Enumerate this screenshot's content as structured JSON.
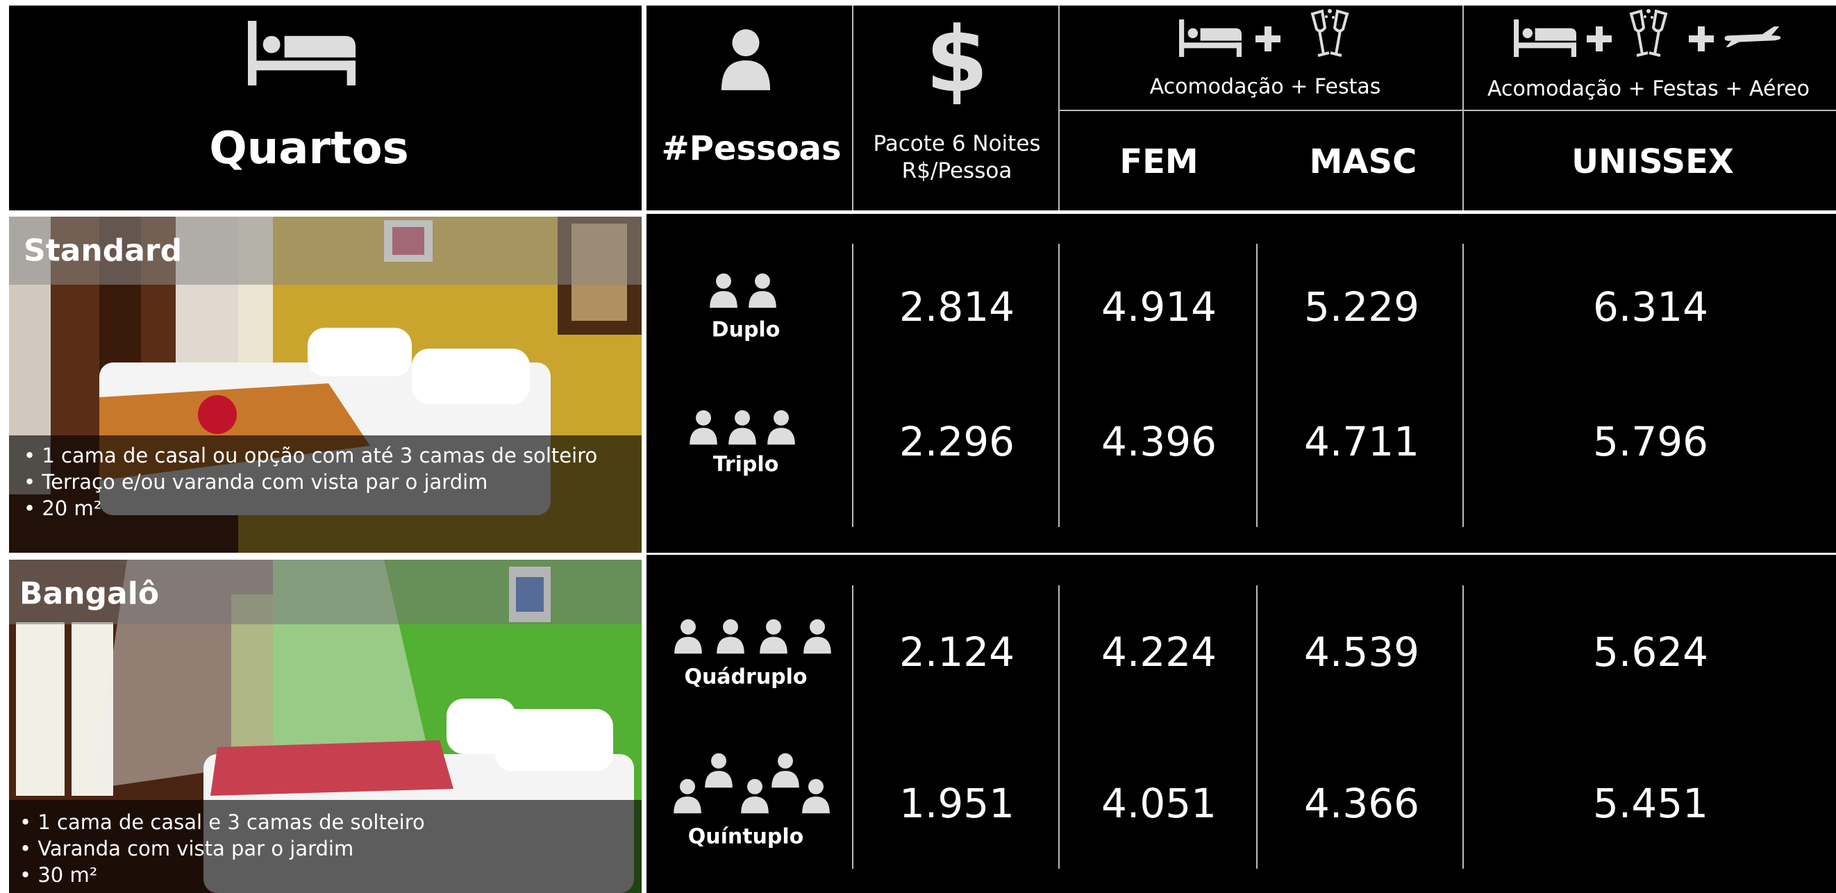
{
  "header": {
    "rooms": "Quartos",
    "people": "#Pessoas",
    "currency_icon": "$",
    "package": [
      "Pacote 6 Noites",
      "R$/Pessoa"
    ],
    "group1": "Acomodação + Festas",
    "fem": "FEM",
    "masc": "MASC",
    "group2": "Acomodação + Festas + Aéreo",
    "unisex": "UNISSEX"
  },
  "rooms": [
    {
      "name": "Standard",
      "features": [
        "1 cama de casal ou opção com até 3 camas de solteiro",
        "Terraço e/ou varanda com vista par o jardim",
        "20 m²"
      ],
      "options": [
        {
          "label": "Duplo",
          "prices": [
            "2.814",
            "4.914",
            "5.229",
            "6.314"
          ]
        },
        {
          "label": "Triplo",
          "prices": [
            "2.296",
            "4.396",
            "4.711",
            "5.796"
          ]
        }
      ]
    },
    {
      "name": "Bangalô",
      "features": [
        "1 cama de casal e 3 camas de solteiro",
        "Varanda com vista par o jardim",
        "30 m²"
      ],
      "options": [
        {
          "label": "Quádruplo",
          "prices": [
            "2.124",
            "4.224",
            "4.539",
            "5.624"
          ]
        },
        {
          "label": "Quíntuplo",
          "prices": [
            "1.951",
            "4.051",
            "4.366",
            "5.451"
          ]
        }
      ]
    }
  ]
}
